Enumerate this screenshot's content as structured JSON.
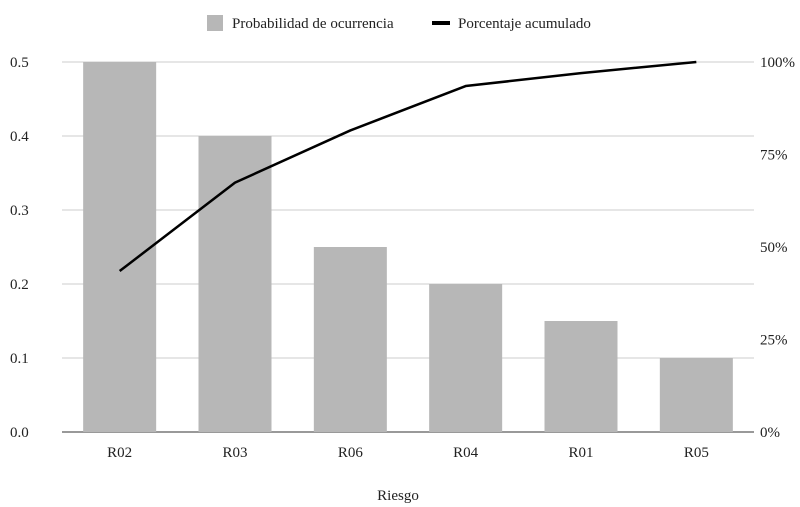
{
  "chart_data": {
    "type": "bar",
    "categories": [
      "R02",
      "R03",
      "R06",
      "R04",
      "R01",
      "R05"
    ],
    "series": [
      {
        "name": "Probabilidad de ocurrencia",
        "type": "bar",
        "axis": "left",
        "color": "#b7b7b7",
        "values": [
          0.5,
          0.4,
          0.25,
          0.2,
          0.15,
          0.1
        ]
      },
      {
        "name": "Porcentaje acumulado",
        "type": "line",
        "axis": "right",
        "color": "#000000",
        "values": [
          0.435,
          0.674,
          0.815,
          0.935,
          0.97,
          1.0
        ]
      }
    ],
    "xlabel": "Riesgo",
    "ylabel": "",
    "ylim": [
      0,
      0.5
    ],
    "yticks": [
      "0.0",
      "0.1",
      "0.2",
      "0.3",
      "0.4",
      "0.5"
    ],
    "y2lim": [
      0,
      1
    ],
    "y2ticks": [
      "0%",
      "25%",
      "50%",
      "75%",
      "100%"
    ],
    "grid": true,
    "legend_position": "top-center"
  }
}
